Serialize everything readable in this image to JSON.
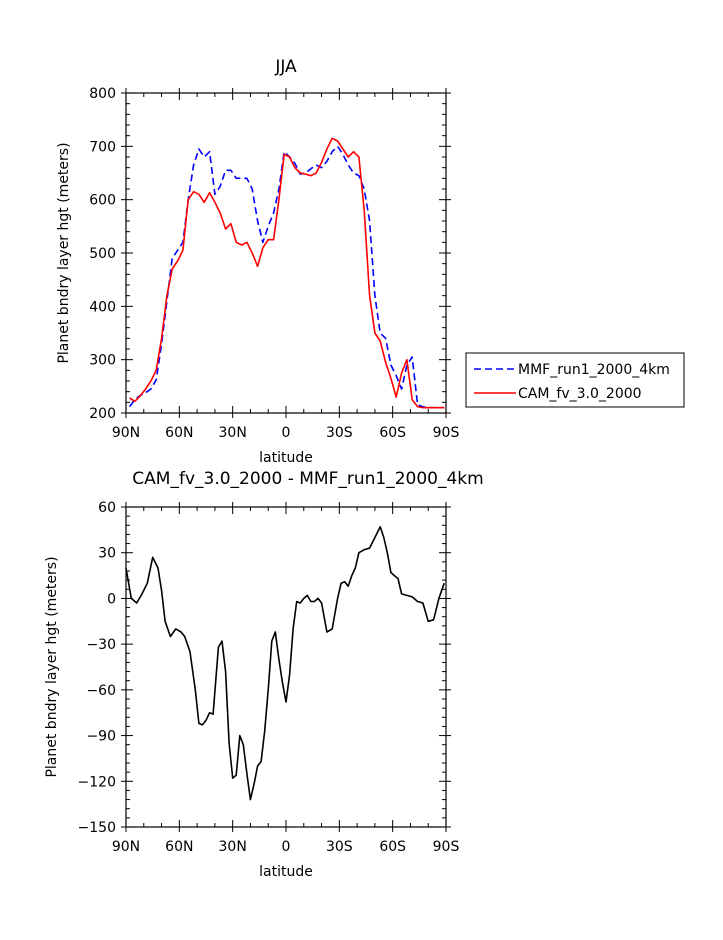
{
  "chart_data": [
    {
      "type": "line",
      "title": "JJA",
      "xlabel": "latitude",
      "ylabel": "Planet bndry layer hgt (meters)",
      "xlim": [
        90,
        -90
      ],
      "ylim": [
        200,
        800
      ],
      "x_ticks": [
        90,
        60,
        30,
        0,
        -30,
        -60,
        -90
      ],
      "x_tick_labels": [
        "90N",
        "60N",
        "30N",
        "0",
        "30S",
        "60S",
        "90S"
      ],
      "y_ticks": [
        200,
        300,
        400,
        500,
        600,
        700,
        800
      ],
      "y_tick_labels": [
        "200",
        "300",
        "400",
        "500",
        "600",
        "700",
        "800"
      ],
      "legend_position": "right",
      "series": [
        {
          "name": "MMF_run1_2000_4km",
          "color": "#0000ff",
          "style": "dashed",
          "x": [
            88,
            85,
            82,
            79,
            76,
            73,
            70,
            67,
            64,
            61,
            58,
            55,
            52,
            49,
            46,
            43,
            40,
            37,
            34,
            31,
            28,
            25,
            22,
            19,
            16,
            13,
            10,
            7,
            4,
            1,
            -2,
            -5,
            -8,
            -11,
            -14,
            -17,
            -20,
            -23,
            -26,
            -29,
            -32,
            -35,
            -38,
            -41,
            -44,
            -47,
            -50,
            -53,
            -56,
            -59,
            -62,
            -65,
            -68,
            -71,
            -74,
            -77,
            -80,
            -83,
            -86,
            -89
          ],
          "values": [
            212,
            225,
            233,
            238,
            245,
            262,
            330,
            410,
            490,
            505,
            520,
            600,
            665,
            695,
            680,
            690,
            610,
            625,
            655,
            655,
            640,
            640,
            640,
            620,
            560,
            520,
            550,
            575,
            620,
            690,
            680,
            668,
            648,
            650,
            658,
            665,
            660,
            672,
            690,
            700,
            685,
            665,
            650,
            645,
            620,
            560,
            420,
            350,
            340,
            290,
            270,
            245,
            290,
            305,
            215,
            212,
            210,
            210,
            210,
            210
          ]
        },
        {
          "name": "CAM_fv_3.0_2000",
          "color": "#ff0000",
          "style": "solid",
          "x": [
            88,
            85,
            82,
            79,
            76,
            73,
            70,
            67,
            64,
            61,
            58,
            55,
            52,
            49,
            46,
            43,
            40,
            37,
            34,
            31,
            28,
            25,
            22,
            19,
            16,
            13,
            10,
            7,
            4,
            1,
            -2,
            -5,
            -8,
            -11,
            -14,
            -17,
            -20,
            -23,
            -26,
            -29,
            -32,
            -35,
            -38,
            -41,
            -44,
            -47,
            -50,
            -53,
            -56,
            -59,
            -62,
            -65,
            -68,
            -71,
            -74,
            -77,
            -80,
            -83,
            -86,
            -89
          ],
          "values": [
            228,
            222,
            232,
            245,
            260,
            280,
            340,
            420,
            470,
            485,
            505,
            600,
            615,
            610,
            595,
            613,
            595,
            575,
            545,
            555,
            520,
            515,
            520,
            500,
            475,
            510,
            525,
            525,
            600,
            685,
            680,
            660,
            650,
            648,
            645,
            650,
            670,
            695,
            715,
            710,
            695,
            680,
            690,
            680,
            580,
            420,
            350,
            335,
            295,
            265,
            230,
            275,
            300,
            225,
            212,
            210,
            210,
            210,
            210,
            210
          ]
        }
      ]
    },
    {
      "type": "line",
      "title": "CAM_fv_3.0_2000 - MMF_run1_2000_4km",
      "xlabel": "latitude",
      "ylabel": "Planet bndry layer hgt (meters)",
      "xlim": [
        90,
        -90
      ],
      "ylim": [
        -150,
        60
      ],
      "x_ticks": [
        90,
        60,
        30,
        0,
        -30,
        -60,
        -90
      ],
      "x_tick_labels": [
        "90N",
        "60N",
        "30N",
        "0",
        "30S",
        "60S",
        "90S"
      ],
      "y_ticks": [
        -150,
        -120,
        -90,
        -60,
        -30,
        0,
        30,
        60
      ],
      "y_tick_labels": [
        "−150",
        "−120",
        "−90",
        "−60",
        "−30",
        "0",
        "30",
        "60"
      ],
      "series": [
        {
          "color": "#000000",
          "style": "solid",
          "x": [
            90,
            87,
            84,
            81,
            78,
            75,
            72,
            70,
            68,
            65,
            62,
            59,
            57,
            54,
            51,
            49,
            47,
            45,
            43,
            41,
            38,
            36,
            34,
            32,
            30,
            28,
            26,
            24,
            22,
            20,
            18,
            16,
            14,
            12,
            10,
            8,
            6,
            4,
            2,
            0,
            -2,
            -4,
            -6,
            -8,
            -10,
            -12,
            -14,
            -16,
            -18,
            -20,
            -23,
            -26,
            -29,
            -31,
            -33,
            -35,
            -37,
            -39,
            -41,
            -44,
            -47,
            -50,
            -53,
            -55,
            -57,
            -59,
            -61,
            -63,
            -65,
            -68,
            -71,
            -74,
            -77,
            -80,
            -83,
            -86,
            -89
          ],
          "values": [
            20,
            0,
            -3,
            3,
            10,
            27,
            20,
            5,
            -15,
            -25,
            -20,
            -22,
            -25,
            -35,
            -60,
            -82,
            -83,
            -80,
            -75,
            -76,
            -32,
            -28,
            -48,
            -95,
            -118,
            -116,
            -90,
            -96,
            -115,
            -132,
            -122,
            -110,
            -107,
            -87,
            -60,
            -28,
            -22,
            -40,
            -55,
            -68,
            -50,
            -20,
            -2,
            -3,
            0,
            2,
            -2,
            -2,
            0,
            -3,
            -22,
            -20,
            0,
            10,
            11,
            8,
            15,
            20,
            30,
            32,
            33,
            40,
            47,
            40,
            30,
            17,
            15,
            13,
            3,
            2,
            1,
            -2,
            -3,
            -15,
            -14,
            0,
            10
          ]
        }
      ]
    }
  ]
}
